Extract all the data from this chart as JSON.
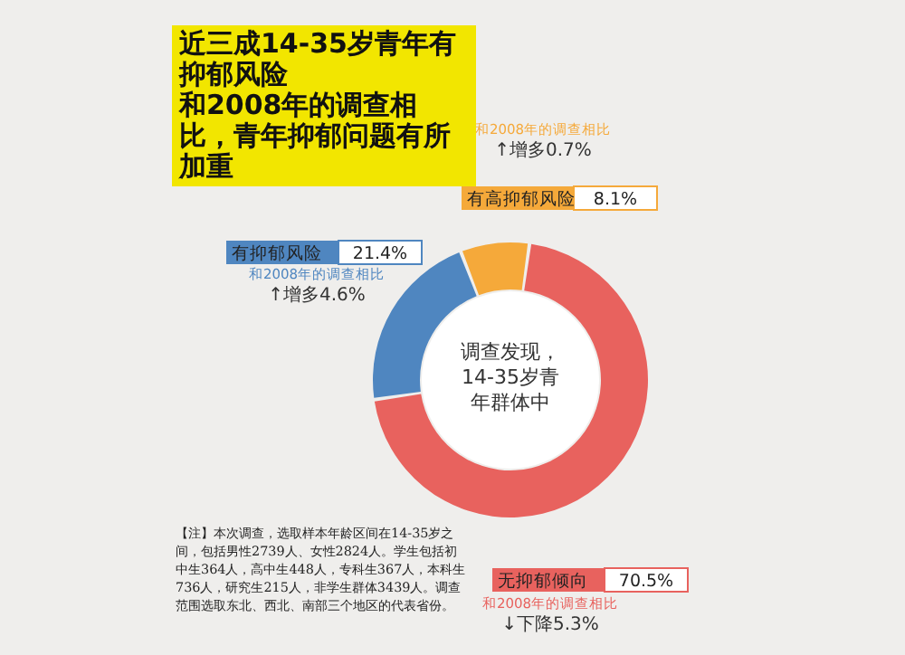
{
  "chart_data": {
    "type": "donut",
    "title": "近三成14-35岁青年有抑郁风险",
    "subtitle": "和2008年的调查相比，青年抑郁问题有所加重",
    "categories": [
      "无抑郁倾向",
      "有抑郁风险",
      "有高抑郁风险"
    ],
    "values": [
      70.5,
      21.4,
      8.1
    ],
    "colors": [
      "#e8625e",
      "#4f86c0",
      "#f5a93a"
    ],
    "value_labels": [
      "70.5%",
      "21.4%",
      "8.1%"
    ],
    "annotations": [
      "调查发现，14-35岁青年群体中",
      {
        "text": "和2008年的调查相比",
        "x": "无抑郁倾向"
      },
      {
        "text": "↓下降5.3%",
        "x": "无抑郁倾向"
      },
      {
        "text": "和2008年的调查相比",
        "x": "有抑郁风险"
      },
      {
        "text": "↑增多4.6%",
        "x": "有抑郁风险"
      },
      {
        "text": "和2008年的调查相比",
        "x": "有高抑郁风险"
      },
      {
        "text": "↑增多0.7%",
        "x": "有高抑郁风险"
      },
      "【注】本次调查，选取样本年龄区间在14-35岁之间，包括男性2739人、女性2824人。学生包括初中生364人，高中生448人，专科生367人，本科生736人，研究生215人，非学生群体3439人。调查范围选取东北、西北、南部三个地区的代表省份。"
    ]
  }
}
